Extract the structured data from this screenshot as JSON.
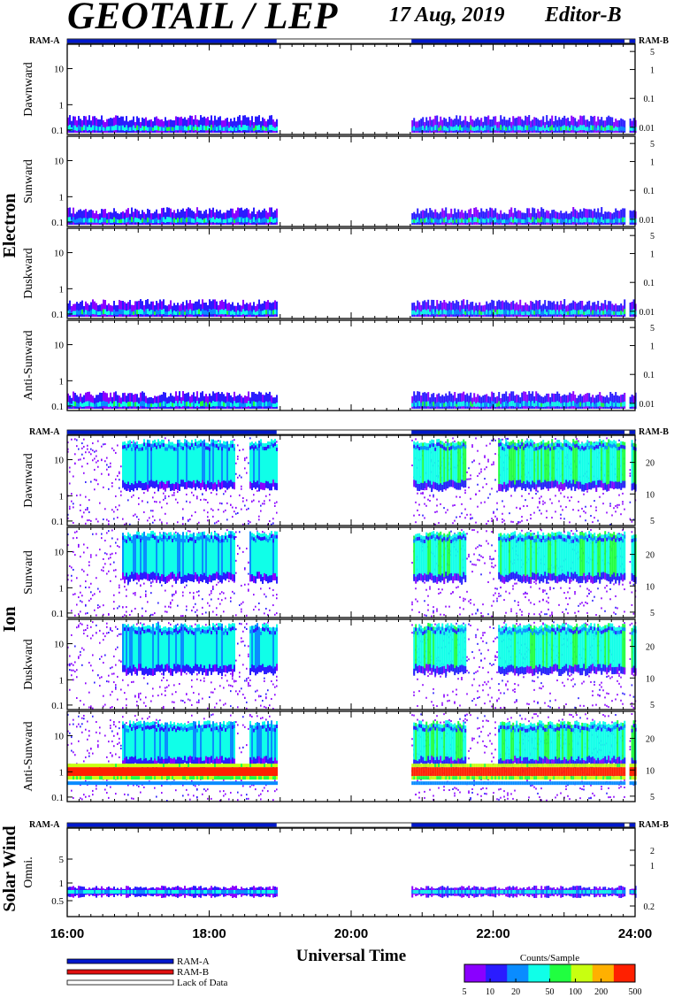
{
  "header": {
    "title": "GEOTAIL / LEP",
    "date": "17 Aug, 2019",
    "editor": "Editor-B"
  },
  "colors": {
    "ram_a": "#0018cc",
    "ram_b": "#e01010",
    "lack_of_data": "#ffffff",
    "colorbar": [
      "#8a00ff",
      "#2a1cff",
      "#0a8cff",
      "#10ffe8",
      "#20ff40",
      "#c8ff10",
      "#ffb000",
      "#ff2000"
    ]
  },
  "chart_data": [
    {
      "type": "heatmap",
      "group": "Electron",
      "panels": [
        {
          "ylabel": "Dawnward",
          "right_ticks": [
            "5",
            "1",
            "0.1",
            "0.01"
          ]
        },
        {
          "ylabel": "Sunward",
          "right_ticks": [
            "5",
            "1",
            "0.1",
            "0.01"
          ]
        },
        {
          "ylabel": "Duskward",
          "right_ticks": [
            "5",
            "1",
            "0.1",
            "0.01"
          ]
        },
        {
          "ylabel": "Anti-Sunward",
          "right_ticks": [
            "5",
            "1",
            "0.1",
            "0.01"
          ]
        }
      ],
      "left_ticks": [
        "10",
        "1",
        "0.1"
      ],
      "ram_left": "RAM-A",
      "ram_right": "RAM-B",
      "data_segments_ut": [
        [
          16.0,
          18.95
        ],
        [
          20.85,
          23.85
        ],
        [
          23.92,
          24.0
        ]
      ],
      "ram_b_segments_ut": [
        [
          23.85,
          23.92
        ]
      ],
      "gap_ut": [
        [
          18.95,
          20.85
        ]
      ]
    },
    {
      "type": "heatmap",
      "group": "Ion",
      "panels": [
        {
          "ylabel": "Dawnward",
          "right_ticks": [
            "20",
            "10",
            "5"
          ]
        },
        {
          "ylabel": "Sunward",
          "right_ticks": [
            "20",
            "10",
            "5"
          ]
        },
        {
          "ylabel": "Duskward",
          "right_ticks": [
            "20",
            "10",
            "5"
          ]
        },
        {
          "ylabel": "Anti-Sunward",
          "right_ticks": [
            "20",
            "10",
            "5"
          ]
        }
      ],
      "left_ticks": [
        "10",
        "1",
        "0.1"
      ],
      "ram_left": "RAM-A",
      "ram_right": "RAM-B",
      "data_segments_ut": [
        [
          16.0,
          18.95
        ],
        [
          20.85,
          23.85
        ],
        [
          23.92,
          24.0
        ]
      ],
      "ram_b_segments_ut": [
        [
          23.85,
          23.92
        ]
      ],
      "gap_ut": [
        [
          18.95,
          20.85
        ]
      ]
    },
    {
      "type": "heatmap",
      "group": "Solar Wind",
      "panels": [
        {
          "ylabel": "Omni.",
          "right_ticks": [
            "2",
            "1",
            "0.2"
          ]
        }
      ],
      "left_ticks": [
        "5",
        "1",
        "0.5"
      ],
      "ram_left": "RAM-A",
      "ram_right": "RAM-B",
      "data_segments_ut": [
        [
          16.0,
          18.95
        ],
        [
          20.85,
          23.85
        ],
        [
          23.92,
          24.0
        ]
      ],
      "ram_b_segments_ut": [
        [
          23.85,
          23.92
        ]
      ],
      "gap_ut": [
        [
          18.95,
          20.85
        ]
      ]
    }
  ],
  "time_axis": {
    "xlabel": "Universal Time",
    "range_ut": [
      16,
      24
    ],
    "ticks": [
      "16:00",
      "18:00",
      "20:00",
      "22:00",
      "24:00"
    ]
  },
  "legend": {
    "items": [
      "RAM-A",
      "RAM-B",
      "Lack of Data"
    ]
  },
  "colorbar": {
    "title": "Counts/Sample",
    "ticks": [
      "5",
      "10",
      "20",
      "50",
      "100",
      "200",
      "500"
    ]
  }
}
